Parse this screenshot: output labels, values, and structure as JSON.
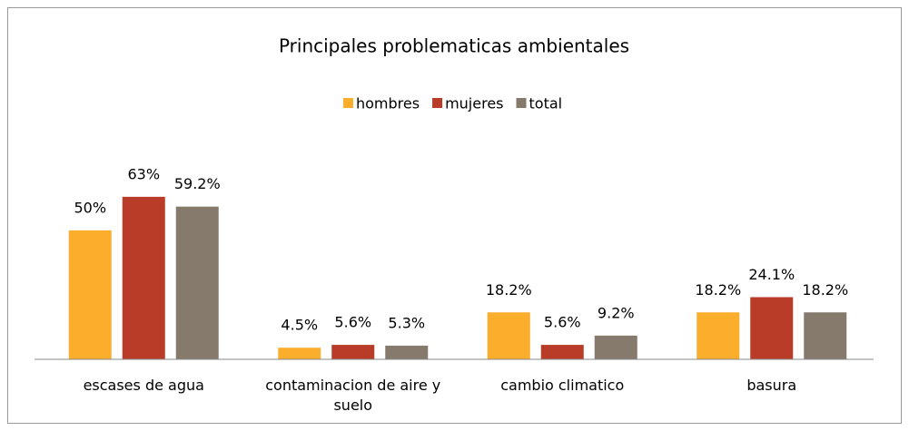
{
  "chart_data": {
    "type": "bar",
    "title": "Principales problematicas ambientales",
    "categories": [
      "escases de agua",
      "contaminacion de aire y suelo",
      "cambio climatico",
      "basura"
    ],
    "series": [
      {
        "name": "hombres",
        "color": "#fbad2c",
        "values": [
          50,
          4.5,
          18.2,
          18.2
        ],
        "value_labels": [
          "50%",
          "4.5%",
          "18.2%",
          "18.2%"
        ]
      },
      {
        "name": "mujeres",
        "color": "#b83c27",
        "values": [
          63,
          5.6,
          5.6,
          24.1
        ],
        "value_labels": [
          "63%",
          "5.6%",
          "5.6%",
          "24.1%"
        ]
      },
      {
        "name": "total",
        "color": "#857a6c",
        "values": [
          59.2,
          5.3,
          9.2,
          18.2
        ],
        "value_labels": [
          "59.2%",
          "5.3%",
          "9.2%",
          "18.2%"
        ]
      }
    ],
    "ylim": [
      0,
      70
    ],
    "legend": "top"
  }
}
